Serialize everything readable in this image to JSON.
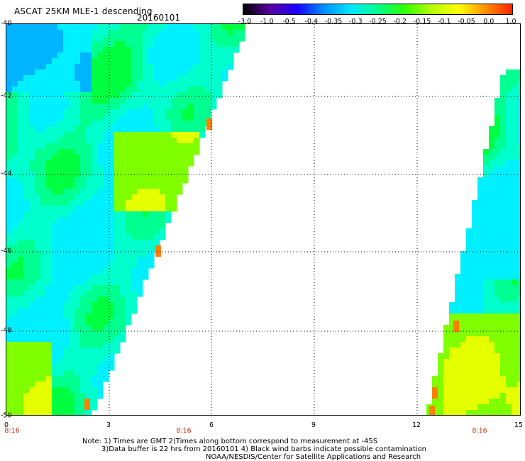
{
  "header": {
    "title": "ASCAT 25KM MLE-1 descending",
    "date": "20160101"
  },
  "colorbar": {
    "labels": [
      "-3.0",
      "-1.0",
      "-0.5",
      "-0.4",
      "-0.35",
      "-0.3",
      "-0.25",
      "-0.2",
      "-0.15",
      "-0.1",
      "-0.05",
      "0.0",
      "1.0"
    ],
    "colors": [
      "#000000",
      "#5a00a0",
      "#1a00ff",
      "#0090ff",
      "#00e6ff",
      "#00ff8c",
      "#32ff00",
      "#b4ff00",
      "#ffff00",
      "#ff9000",
      "#ff2000"
    ]
  },
  "map": {
    "lat_labels": [
      "-40",
      "-42",
      "-44",
      "-46",
      "-48",
      "-50"
    ],
    "lon_labels": [
      "0",
      "3",
      "6",
      "9",
      "12",
      "15"
    ],
    "time_labels": [
      "8:16",
      "8:16",
      "8:16"
    ],
    "colors": {
      "cyan": "#00f0ff",
      "light_cyan": "#00ffcc",
      "sea_green": "#00ff90",
      "green": "#00ff40",
      "light_green": "#7fff00",
      "yellow": "#e6ff00",
      "orange": "#ff8000",
      "blue": "#00b4ff"
    }
  },
  "notes": {
    "line1": "Note: 1) Times are GMT 2)Times along bottom correspond to measurement at -45S",
    "line2": "3)Data buffer is 22 hrs from 20160101 4) Black wind barbs indicate possible contamination",
    "line3": "NOAA/NESDIS/Center for Satellite Applications and Research"
  }
}
